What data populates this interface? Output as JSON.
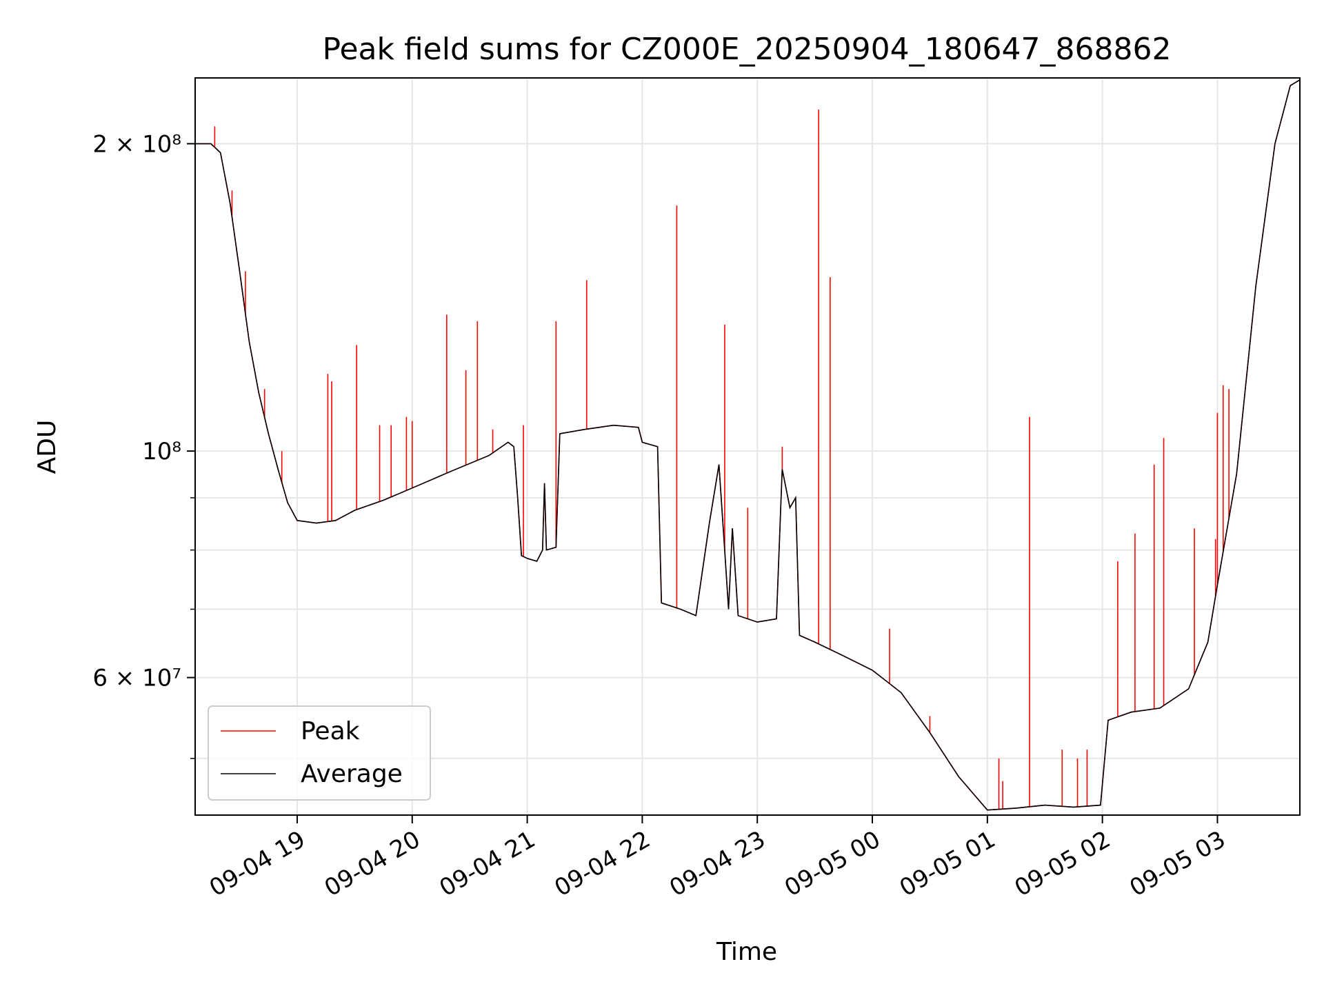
{
  "chart_data": {
    "type": "line",
    "title": "Peak field sums for CZ000E_20250904_180647_868862",
    "xlabel": "Time",
    "ylabel": "ADU",
    "yscale": "log",
    "ylim": [
      44000000,
      232000000
    ],
    "xlim": [
      "2025-09-04 18:06:47",
      "2025-09-05 03:43:00"
    ],
    "x_ticks": [
      "09-04 19",
      "09-04 20",
      "09-04 21",
      "09-04 22",
      "09-04 23",
      "09-05 00",
      "09-05 01",
      "09-05 02",
      "09-05 03"
    ],
    "x_tick_times": [
      "2025-09-04 19:00",
      "2025-09-04 20:00",
      "2025-09-04 21:00",
      "2025-09-04 22:00",
      "2025-09-04 23:00",
      "2025-09-05 00:00",
      "2025-09-05 01:00",
      "2025-09-05 02:00",
      "2025-09-05 03:00"
    ],
    "y_major_ticks": [
      {
        "value": 200000000,
        "label": "2 × 10⁸"
      },
      {
        "value": 100000000,
        "label": "10⁸"
      },
      {
        "value": 60000000,
        "label": "6 × 10⁷"
      }
    ],
    "y_minor_ticks": [
      50000000,
      70000000,
      80000000,
      90000000
    ],
    "grid": true,
    "legend_position": "lower-left",
    "series": [
      {
        "name": "Average",
        "color": "#000000",
        "points": [
          [
            "2025-09-04 18:06",
            200000000
          ],
          [
            "2025-09-04 18:15",
            200000000
          ],
          [
            "2025-09-04 18:20",
            196000000
          ],
          [
            "2025-09-04 18:25",
            175000000
          ],
          [
            "2025-09-04 18:30",
            150000000
          ],
          [
            "2025-09-04 18:35",
            128000000
          ],
          [
            "2025-09-04 18:40",
            114000000
          ],
          [
            "2025-09-04 18:45",
            104000000
          ],
          [
            "2025-09-04 18:50",
            96000000
          ],
          [
            "2025-09-04 18:55",
            89000000
          ],
          [
            "2025-09-04 19:00",
            85500000
          ],
          [
            "2025-09-04 19:10",
            85000000
          ],
          [
            "2025-09-04 19:20",
            85500000
          ],
          [
            "2025-09-04 19:30",
            87500000
          ],
          [
            "2025-09-04 19:45",
            89500000
          ],
          [
            "2025-09-04 20:00",
            92000000
          ],
          [
            "2025-09-04 20:20",
            95500000
          ],
          [
            "2025-09-04 20:40",
            99000000
          ],
          [
            "2025-09-04 20:50",
            102000000
          ],
          [
            "2025-09-04 20:53",
            101000000
          ],
          [
            "2025-09-04 20:55",
            90000000
          ],
          [
            "2025-09-04 20:57",
            79000000
          ],
          [
            "2025-09-04 21:00",
            78500000
          ],
          [
            "2025-09-04 21:05",
            78000000
          ],
          [
            "2025-09-04 21:08",
            80000000
          ],
          [
            "2025-09-04 21:09",
            93000000
          ],
          [
            "2025-09-04 21:10",
            80000000
          ],
          [
            "2025-09-04 21:15",
            80500000
          ],
          [
            "2025-09-04 21:17",
            104000000
          ],
          [
            "2025-09-04 21:30",
            105000000
          ],
          [
            "2025-09-04 21:45",
            106000000
          ],
          [
            "2025-09-04 21:58",
            105500000
          ],
          [
            "2025-09-04 22:00",
            102000000
          ],
          [
            "2025-09-04 22:08",
            101000000
          ],
          [
            "2025-09-04 22:10",
            71000000
          ],
          [
            "2025-09-04 22:20",
            70000000
          ],
          [
            "2025-09-04 22:28",
            69000000
          ],
          [
            "2025-09-04 22:35",
            85000000
          ],
          [
            "2025-09-04 22:40",
            97000000
          ],
          [
            "2025-09-04 22:43",
            80000000
          ],
          [
            "2025-09-04 22:45",
            70000000
          ],
          [
            "2025-09-04 22:47",
            84000000
          ],
          [
            "2025-09-04 22:50",
            69000000
          ],
          [
            "2025-09-04 23:00",
            68000000
          ],
          [
            "2025-09-04 23:10",
            68500000
          ],
          [
            "2025-09-04 23:13",
            96000000
          ],
          [
            "2025-09-04 23:17",
            88000000
          ],
          [
            "2025-09-04 23:20",
            90000000
          ],
          [
            "2025-09-04 23:22",
            66000000
          ],
          [
            "2025-09-04 23:30",
            65000000
          ],
          [
            "2025-09-04 23:45",
            63000000
          ],
          [
            "2025-09-05 00:00",
            61000000
          ],
          [
            "2025-09-05 00:15",
            58000000
          ],
          [
            "2025-09-05 00:30",
            53000000
          ],
          [
            "2025-09-05 00:45",
            48000000
          ],
          [
            "2025-09-05 01:00",
            44500000
          ],
          [
            "2025-09-05 01:15",
            44700000
          ],
          [
            "2025-09-05 01:30",
            45000000
          ],
          [
            "2025-09-05 01:45",
            44800000
          ],
          [
            "2025-09-05 01:59",
            45000000
          ],
          [
            "2025-09-05 02:03",
            54500000
          ],
          [
            "2025-09-05 02:15",
            55500000
          ],
          [
            "2025-09-05 02:30",
            56000000
          ],
          [
            "2025-09-05 02:45",
            58500000
          ],
          [
            "2025-09-05 02:55",
            65000000
          ],
          [
            "2025-09-05 03:00",
            74000000
          ],
          [
            "2025-09-05 03:10",
            95000000
          ],
          [
            "2025-09-05 03:20",
            145000000
          ],
          [
            "2025-09-05 03:30",
            200000000
          ],
          [
            "2025-09-05 03:38",
            228000000
          ],
          [
            "2025-09-05 03:43",
            231000000
          ]
        ]
      },
      {
        "name": "Peak",
        "color": "#ff0000",
        "points": [
          [
            "2025-09-04 18:06",
            200000000
          ],
          [
            "2025-09-04 18:15",
            200000000
          ],
          [
            "2025-09-04 18:20",
            196000000
          ],
          [
            "2025-09-04 18:25",
            175000000
          ],
          [
            "2025-09-04 18:30",
            150000000
          ],
          [
            "2025-09-04 18:35",
            128000000
          ],
          [
            "2025-09-04 18:40",
            114000000
          ],
          [
            "2025-09-04 18:45",
            104000000
          ],
          [
            "2025-09-04 18:50",
            96000000
          ],
          [
            "2025-09-04 18:55",
            89000000
          ],
          [
            "2025-09-04 19:00",
            85500000
          ],
          [
            "2025-09-04 19:10",
            85000000
          ],
          [
            "2025-09-04 19:20",
            85500000
          ],
          [
            "2025-09-04 19:30",
            87500000
          ],
          [
            "2025-09-04 19:45",
            89500000
          ],
          [
            "2025-09-04 20:00",
            92000000
          ],
          [
            "2025-09-04 20:20",
            95500000
          ],
          [
            "2025-09-04 20:40",
            99000000
          ],
          [
            "2025-09-04 20:50",
            102000000
          ],
          [
            "2025-09-04 20:53",
            101000000
          ],
          [
            "2025-09-04 20:55",
            90000000
          ],
          [
            "2025-09-04 20:57",
            79000000
          ],
          [
            "2025-09-04 21:00",
            78500000
          ],
          [
            "2025-09-04 21:05",
            78000000
          ],
          [
            "2025-09-04 21:08",
            80000000
          ],
          [
            "2025-09-04 21:09",
            93000000
          ],
          [
            "2025-09-04 21:10",
            80000000
          ],
          [
            "2025-09-04 21:15",
            80500000
          ],
          [
            "2025-09-04 21:17",
            104000000
          ],
          [
            "2025-09-04 21:30",
            105000000
          ],
          [
            "2025-09-04 21:45",
            106000000
          ],
          [
            "2025-09-04 21:58",
            105500000
          ],
          [
            "2025-09-04 22:00",
            102000000
          ],
          [
            "2025-09-04 22:08",
            101000000
          ],
          [
            "2025-09-04 22:10",
            71000000
          ],
          [
            "2025-09-04 22:20",
            70000000
          ],
          [
            "2025-09-04 22:28",
            69000000
          ],
          [
            "2025-09-04 22:35",
            85000000
          ],
          [
            "2025-09-04 22:40",
            97000000
          ],
          [
            "2025-09-04 22:43",
            80000000
          ],
          [
            "2025-09-04 22:45",
            70000000
          ],
          [
            "2025-09-04 22:47",
            84000000
          ],
          [
            "2025-09-04 22:50",
            69000000
          ],
          [
            "2025-09-04 23:00",
            68000000
          ],
          [
            "2025-09-04 23:10",
            68500000
          ],
          [
            "2025-09-04 23:13",
            96000000
          ],
          [
            "2025-09-04 23:17",
            88000000
          ],
          [
            "2025-09-04 23:20",
            90000000
          ],
          [
            "2025-09-04 23:22",
            66000000
          ],
          [
            "2025-09-04 23:30",
            65000000
          ],
          [
            "2025-09-04 23:45",
            63000000
          ],
          [
            "2025-09-05 00:00",
            61000000
          ],
          [
            "2025-09-05 00:15",
            58000000
          ],
          [
            "2025-09-05 00:30",
            53000000
          ],
          [
            "2025-09-05 00:45",
            48000000
          ],
          [
            "2025-09-05 01:00",
            44500000
          ],
          [
            "2025-09-05 01:15",
            44700000
          ],
          [
            "2025-09-05 01:30",
            45000000
          ],
          [
            "2025-09-05 01:45",
            44800000
          ],
          [
            "2025-09-05 01:59",
            45000000
          ],
          [
            "2025-09-05 02:03",
            54500000
          ],
          [
            "2025-09-05 02:15",
            55500000
          ],
          [
            "2025-09-05 02:30",
            56000000
          ],
          [
            "2025-09-05 02:45",
            58500000
          ],
          [
            "2025-09-05 02:55",
            65000000
          ],
          [
            "2025-09-05 03:00",
            74000000
          ],
          [
            "2025-09-05 03:10",
            95000000
          ],
          [
            "2025-09-05 03:20",
            145000000
          ],
          [
            "2025-09-05 03:30",
            200000000
          ],
          [
            "2025-09-05 03:38",
            228000000
          ],
          [
            "2025-09-05 03:43",
            231000000
          ]
        ],
        "spikes": [
          [
            "2025-09-04 18:17",
            208000000
          ],
          [
            "2025-09-04 18:26",
            180000000
          ],
          [
            "2025-09-04 18:33",
            150000000
          ],
          [
            "2025-09-04 18:43",
            115000000
          ],
          [
            "2025-09-04 18:52",
            100000000
          ],
          [
            "2025-09-04 19:16",
            119000000
          ],
          [
            "2025-09-04 19:18",
            117000000
          ],
          [
            "2025-09-04 19:31",
            127000000
          ],
          [
            "2025-09-04 19:43",
            106000000
          ],
          [
            "2025-09-04 19:49",
            106000000
          ],
          [
            "2025-09-04 19:57",
            108000000
          ],
          [
            "2025-09-04 20:00",
            107000000
          ],
          [
            "2025-09-04 20:18",
            136000000
          ],
          [
            "2025-09-04 20:28",
            120000000
          ],
          [
            "2025-09-04 20:34",
            134000000
          ],
          [
            "2025-09-04 20:42",
            105000000
          ],
          [
            "2025-09-04 20:58",
            106000000
          ],
          [
            "2025-09-04 21:15",
            134000000
          ],
          [
            "2025-09-04 21:31",
            147000000
          ],
          [
            "2025-09-04 22:18",
            174000000
          ],
          [
            "2025-09-04 22:43",
            133000000
          ],
          [
            "2025-09-04 22:55",
            88000000
          ],
          [
            "2025-09-04 23:13",
            101000000
          ],
          [
            "2025-09-04 23:32",
            216000000
          ],
          [
            "2025-09-04 23:38",
            148000000
          ],
          [
            "2025-09-05 00:09",
            67000000
          ],
          [
            "2025-09-05 00:30",
            55000000
          ],
          [
            "2025-09-05 01:06",
            50000000
          ],
          [
            "2025-09-05 01:08",
            47500000
          ],
          [
            "2025-09-05 01:22",
            108000000
          ],
          [
            "2025-09-05 01:39",
            51000000
          ],
          [
            "2025-09-05 01:47",
            50000000
          ],
          [
            "2025-09-05 01:52",
            51000000
          ],
          [
            "2025-09-05 02:08",
            78000000
          ],
          [
            "2025-09-05 02:17",
            83000000
          ],
          [
            "2025-09-05 02:27",
            97000000
          ],
          [
            "2025-09-05 02:32",
            103000000
          ],
          [
            "2025-09-05 02:48",
            84000000
          ],
          [
            "2025-09-05 02:59",
            82000000
          ],
          [
            "2025-09-05 03:00",
            109000000
          ],
          [
            "2025-09-05 03:03",
            116000000
          ],
          [
            "2025-09-05 03:06",
            115000000
          ]
        ]
      }
    ]
  }
}
